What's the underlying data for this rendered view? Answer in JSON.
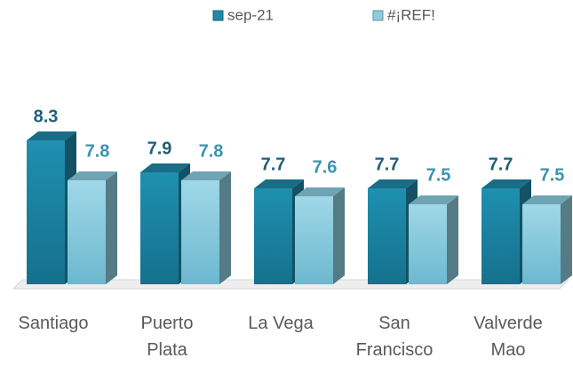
{
  "chart_data": {
    "type": "bar3d",
    "categories": [
      "Santiago",
      "Puerto Plata",
      "La Vega",
      "San Francisco",
      "Valverde Mao"
    ],
    "series": [
      {
        "name": "sep-21",
        "color": "#1f88a8",
        "values": [
          8.3,
          7.9,
          7.7,
          7.7,
          7.7
        ]
      },
      {
        "name": "#¡REF!",
        "color": "#8ccde0",
        "values": [
          7.8,
          7.8,
          7.6,
          7.5,
          7.5
        ]
      }
    ],
    "ylim": [
      6.5,
      8.5
    ],
    "legend": "top"
  }
}
